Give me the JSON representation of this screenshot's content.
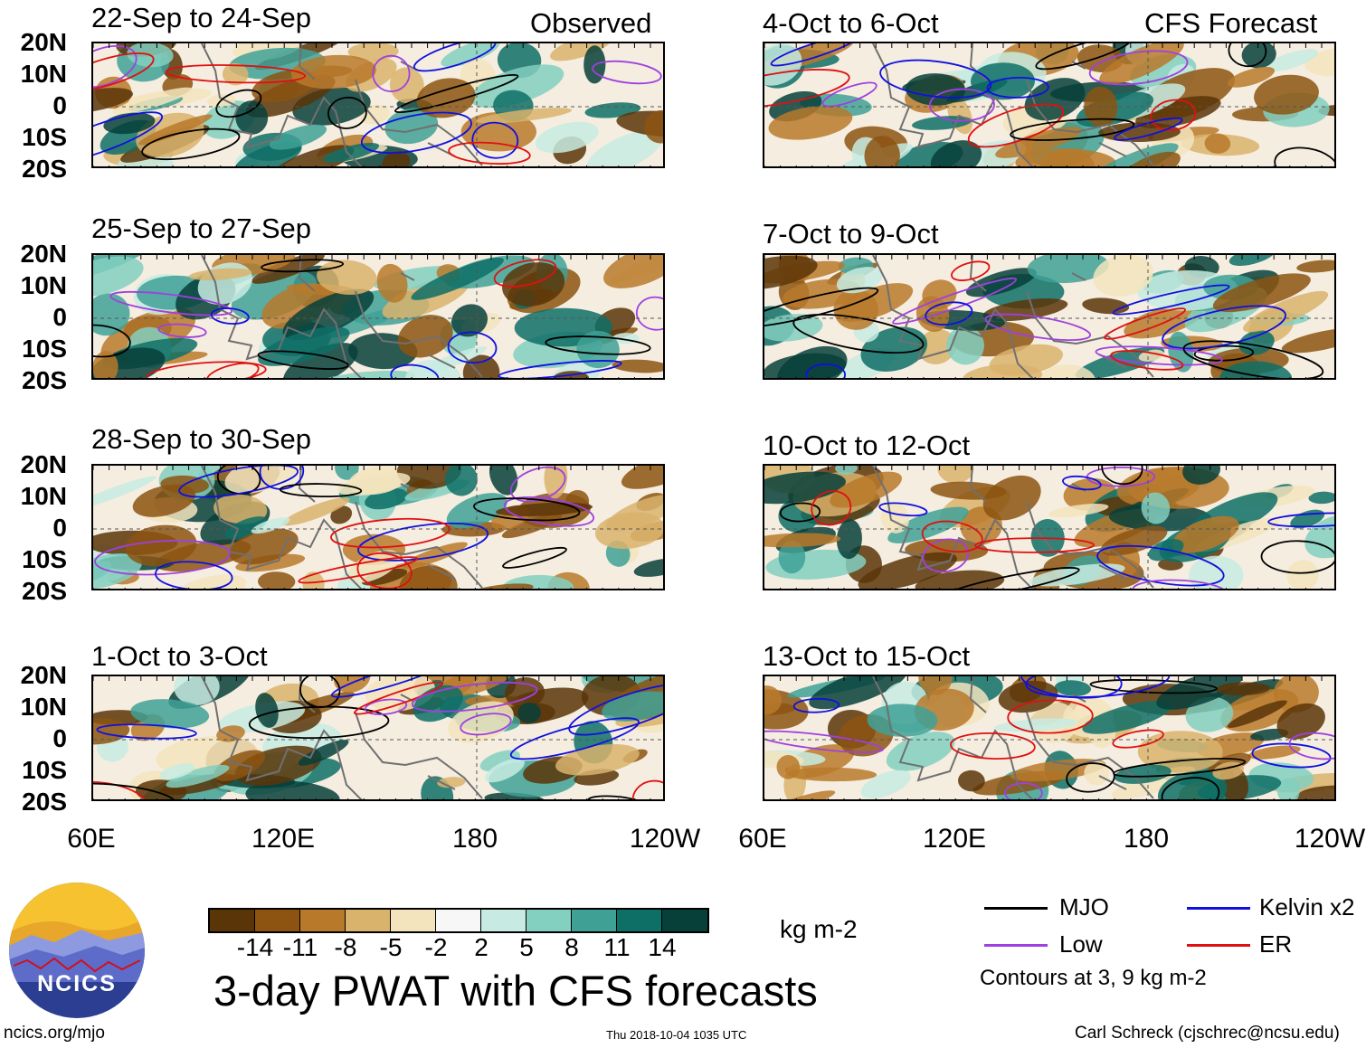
{
  "headers": {
    "left_corner": "Observed",
    "right_corner": "CFS Forecast"
  },
  "panels": [
    {
      "title": "22-Sep to 24-Sep"
    },
    {
      "title": "25-Sep to 27-Sep"
    },
    {
      "title": "28-Sep to 30-Sep"
    },
    {
      "title": "1-Oct to 3-Oct"
    },
    {
      "title": "4-Oct to 6-Oct"
    },
    {
      "title": "7-Oct to 9-Oct"
    },
    {
      "title": "10-Oct to 12-Oct"
    },
    {
      "title": "13-Oct to 15-Oct"
    }
  ],
  "y_axis": [
    "20N",
    "10N",
    "0",
    "10S",
    "20S"
  ],
  "x_axis": [
    "60E",
    "120E",
    "180",
    "120W"
  ],
  "colorbar": {
    "labels": [
      "-14",
      "-11",
      "-8",
      "-5",
      "-2",
      "2",
      "5",
      "8",
      "11",
      "14"
    ],
    "colors": [
      "#5a3508",
      "#8c5410",
      "#b8792a",
      "#d9b36c",
      "#f3e4bd",
      "#f7f7f7",
      "#c7ebe2",
      "#83cfc0",
      "#3fa196",
      "#0e6f66",
      "#073f39"
    ],
    "units": "kg m-2"
  },
  "title": "3-day PWAT with CFS forecasts",
  "legend": {
    "items": [
      {
        "label": "MJO",
        "color": "#000000"
      },
      {
        "label": "Kelvin x2",
        "color": "#1010e0"
      },
      {
        "label": "Low",
        "color": "#a040e0"
      },
      {
        "label": "ER",
        "color": "#e01010"
      }
    ],
    "note": "Contours at 3, 9 kg m-2"
  },
  "logo": {
    "text": "NCICS"
  },
  "footer": {
    "url": "ncics.org/mjo",
    "timestamp": "Thu 2018-10-04 1035 UTC",
    "author": "Carl Schreck (cjschrec@ncsu.edu)"
  }
}
